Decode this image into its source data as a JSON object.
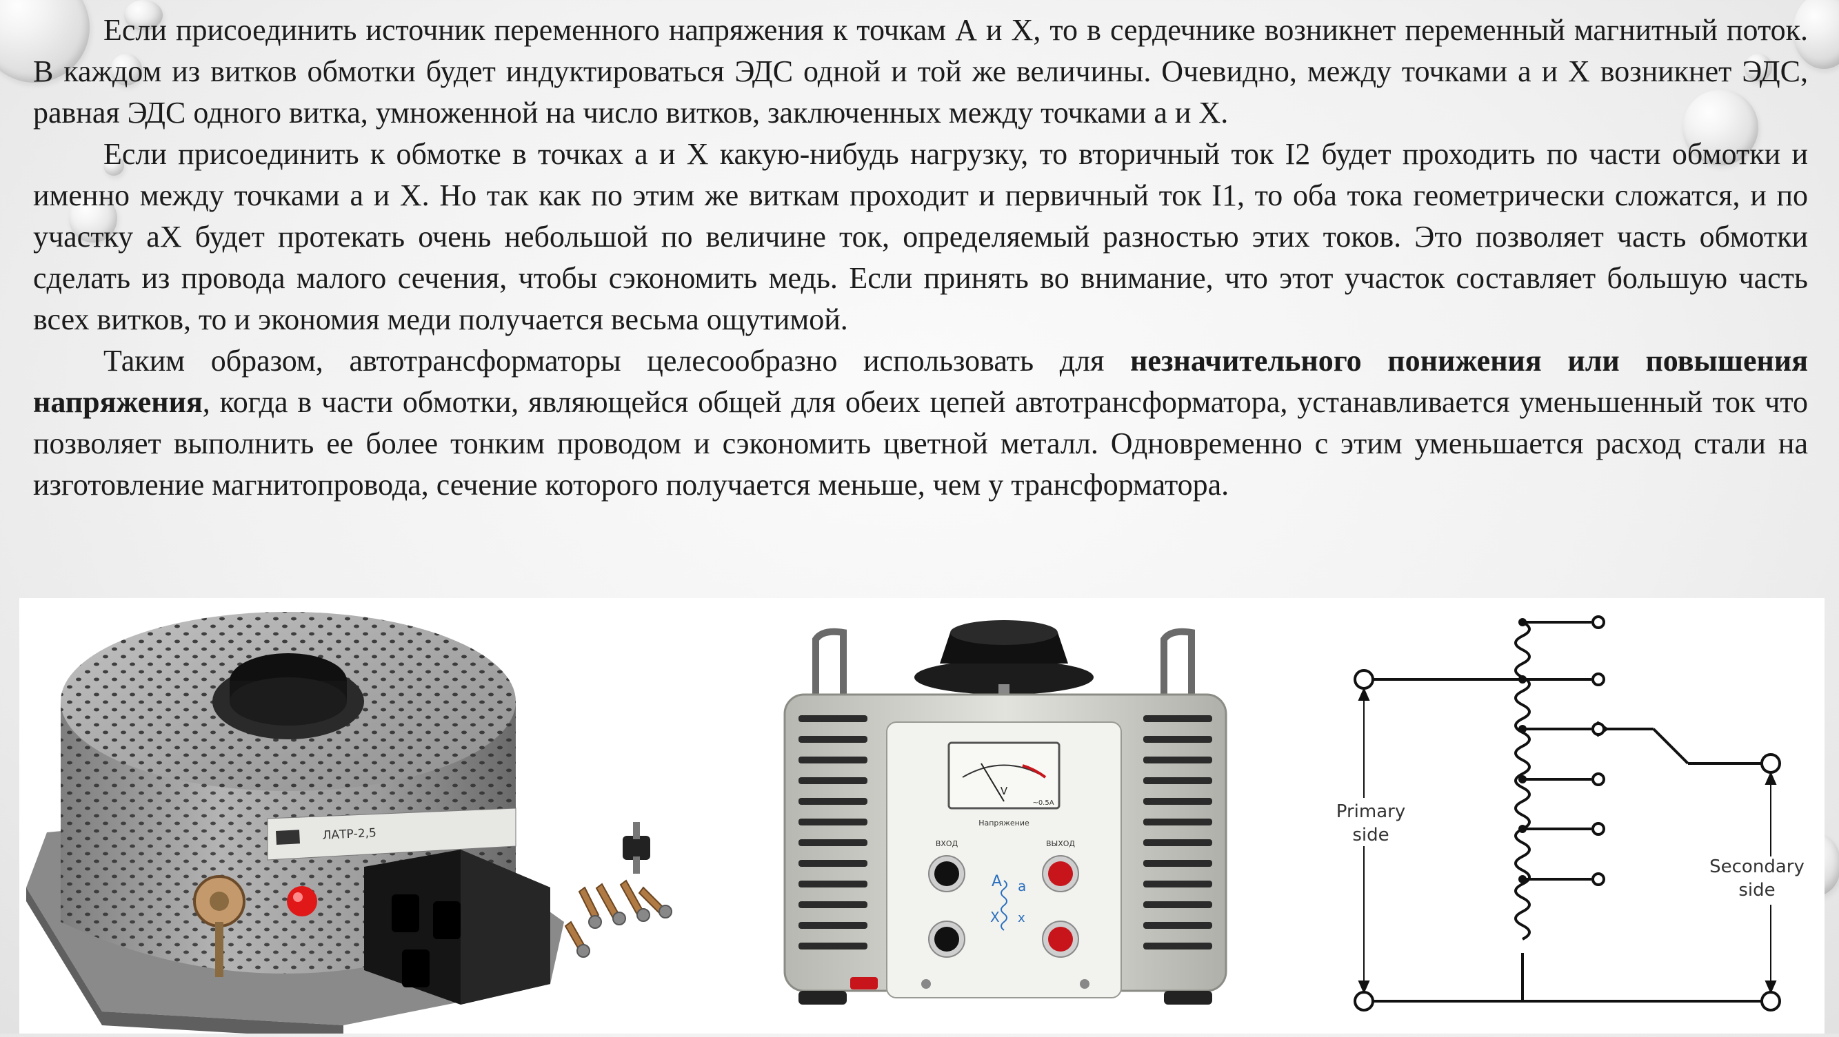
{
  "paragraphs": {
    "p1": "Если присоединить источник переменного напряжения к точкам А и X, то в сердечнике возникнет переменный магнитный поток. В каждом из витков обмотки будет индуктироваться ЭДС одной и той же величины. Очевидно, между точками а и X возникнет ЭДС, равная ЭДС одного витка, умноженной на число витков, заключенных между точками а и X.",
    "p2": "Если присоединить к обмотке в точках а и X какую-нибудь нагрузку, то вторичный ток I2 будет проходить по части обмотки и именно между точками а и X. Но так как по этим же виткам проходит и первичный ток I1, то оба тока геометрически сложатся, и по участку аX будет протекать очень небольшой по величине ток, определяемый разностью этих токов. Это позволяет часть обмотки сделать из провода малого сечения, чтобы сэкономить медь. Если принять во внимание, что этот участок составляет большую часть всех витков, то и экономия меди получается весьма ощутимой.",
    "p3_start": "Таким образом, автотрансформаторы целесообразно использовать для ",
    "p3_bold": "незначительного понижения или повышения напряжения",
    "p3_end": ", когда в части обмотки, являющейся общей для обеих цепей автотрансформатора, устанавливается уменьшенный ток что позволяет выполнить ее более тонким проводом и сэкономить цветной металл. Одновременно с этим уменьшается расход стали на изготовление магнитопровода, сечение которого получается меньше, чем у трансформатора."
  },
  "latr_device": {
    "model_label": "ЛАТР-2,5"
  },
  "regulator_device": {
    "meter_unit": "V",
    "meter_range": "~0.5A",
    "panel_title": "Напряжение",
    "input_label": "ВХОД",
    "output_label": "ВЫХОД",
    "terminal_A": "A",
    "terminal_a": "a",
    "terminal_X": "X",
    "terminal_x": "x"
  },
  "schematic": {
    "primary_label_line1": "Primary",
    "primary_label_line2": "side",
    "secondary_label_line1": "Secondary",
    "secondary_label_line2": "side"
  },
  "colors": {
    "text": "#1b1b1b",
    "device_gray": "#9a9a9a",
    "red_button": "#c8141b",
    "black_knob": "#151515"
  }
}
